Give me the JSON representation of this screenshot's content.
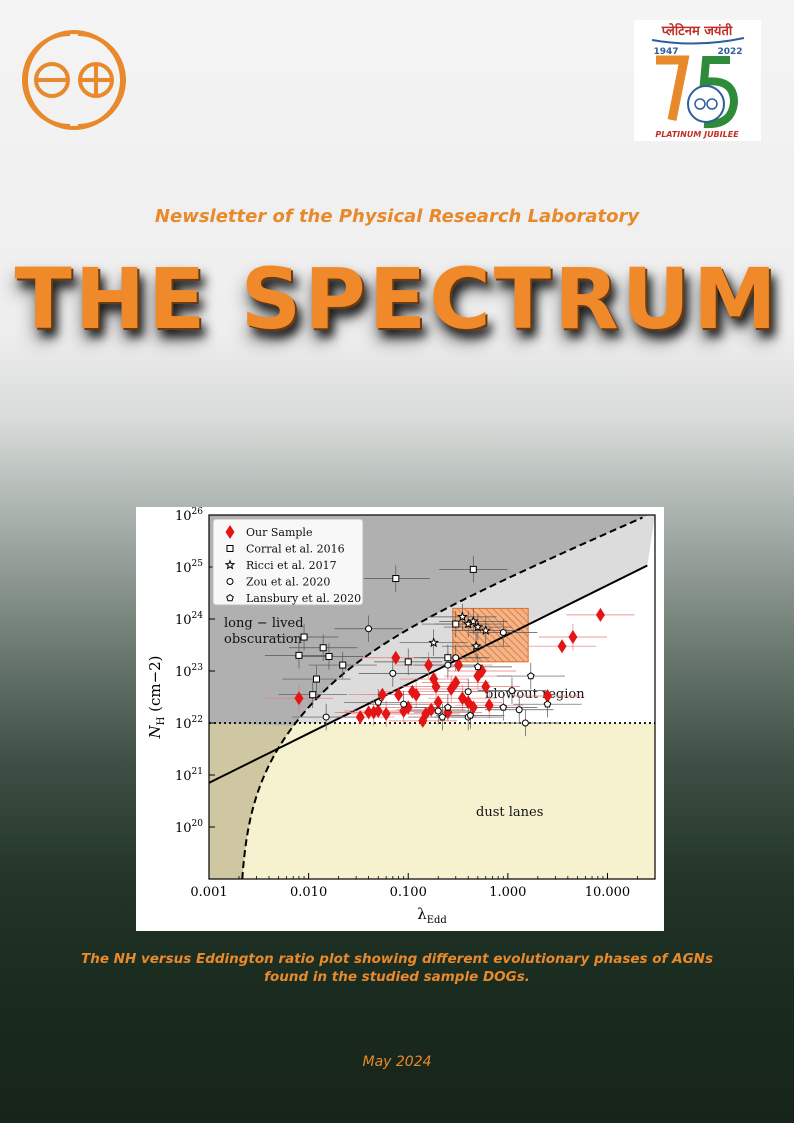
{
  "header": {
    "logo_icon": "prl-logo-icon",
    "jubilee_badge": {
      "hindi_text": "प्लेटिनम जयंती",
      "year_start": "1947",
      "year_end": "2022",
      "number": "75",
      "label": "PLATINUM JUBILEE"
    }
  },
  "subtitle": "Newsletter of the Physical Research Laboratory",
  "title": "THE SPECTRUM",
  "caption_line1": "The NH versus Eddington ratio plot showing different evolutionary phases of AGNs",
  "caption_line2": "found in the studied sample DOGs.",
  "date": "May 2024",
  "colors": {
    "accent": "#e8892b",
    "dark_green": "#192a1f",
    "marker_red": "#e31515"
  },
  "chart_data": {
    "type": "scatter",
    "xlabel": "λEdd",
    "ylabel": "NH (cm−2)",
    "xscale": "log",
    "yscale": "log",
    "xlim": [
      0.001,
      30
    ],
    "ylim": [
      1e+19,
      1e+26
    ],
    "xticks": [
      "0.001",
      "0.010",
      "0.100",
      "1.000",
      "10.000"
    ],
    "yticks": [
      "10^20",
      "10^21",
      "10^22",
      "10^23",
      "10^24",
      "10^25",
      "10^26"
    ],
    "legend_position": "top-left",
    "region_labels": {
      "long_lived_1": "long − lived",
      "long_lived_2": "obscuration",
      "blowout": "blowout region",
      "dust": "dust lanes"
    },
    "series": [
      {
        "name": "Our Sample",
        "marker": "diamond",
        "color": "#e31515",
        "points": [
          [
            0.008,
            3e+22
          ],
          [
            0.033,
            1.3e+22
          ],
          [
            0.04,
            1.6e+22
          ],
          [
            0.045,
            1.6e+22
          ],
          [
            0.05,
            1.7e+22
          ],
          [
            0.055,
            3.5e+22
          ],
          [
            0.06,
            1.5e+22
          ],
          [
            0.075,
            1.8e+23
          ],
          [
            0.08,
            3.5e+22
          ],
          [
            0.09,
            1.7e+22
          ],
          [
            0.1,
            2e+22
          ],
          [
            0.11,
            4e+22
          ],
          [
            0.12,
            3.5e+22
          ],
          [
            0.14,
            1.1e+22
          ],
          [
            0.15,
            1.5e+22
          ],
          [
            0.16,
            1.3e+23
          ],
          [
            0.17,
            1.8e+22
          ],
          [
            0.18,
            7e+22
          ],
          [
            0.19,
            5e+22
          ],
          [
            0.2,
            2.5e+22
          ],
          [
            0.25,
            1.6e+22
          ],
          [
            0.27,
            4.5e+22
          ],
          [
            0.3,
            6e+22
          ],
          [
            0.32,
            1.3e+23
          ],
          [
            0.35,
            3e+22
          ],
          [
            0.4,
            2.5e+22
          ],
          [
            0.45,
            2e+22
          ],
          [
            0.5,
            8e+22
          ],
          [
            0.55,
            1e+23
          ],
          [
            0.6,
            5e+22
          ],
          [
            0.65,
            2.2e+22
          ],
          [
            2.5,
            3.3e+22
          ],
          [
            3.5,
            3e+23
          ],
          [
            4.5,
            4.5e+23
          ],
          [
            8.5,
            1.2e+24
          ]
        ]
      },
      {
        "name": "Corral et al. 2016",
        "marker": "square",
        "points": [
          [
            0.008,
            2e+23
          ],
          [
            0.009,
            4.5e+23
          ],
          [
            0.011,
            3.5e+22
          ],
          [
            0.012,
            7e+22
          ],
          [
            0.014,
            2.8e+23
          ],
          [
            0.016,
            1.9e+23
          ],
          [
            0.022,
            1.3e+23
          ],
          [
            0.075,
            6e+24
          ],
          [
            0.1,
            1.5e+23
          ],
          [
            0.25,
            1.8e+23
          ],
          [
            0.3,
            8e+23
          ],
          [
            0.45,
            9e+24
          ]
        ]
      },
      {
        "name": "Ricci et al. 2017",
        "marker": "star",
        "points": [
          [
            0.18,
            3.5e+23
          ],
          [
            0.35,
            1.1e+24
          ],
          [
            0.4,
            8e+23
          ],
          [
            0.45,
            9e+23
          ],
          [
            0.5,
            7e+23
          ],
          [
            0.6,
            6e+23
          ],
          [
            0.48,
            3e+23
          ]
        ]
      },
      {
        "name": "Zou et al. 2020",
        "marker": "circle",
        "points": [
          [
            0.015,
            1.3e+22
          ],
          [
            0.04,
            6.5e+23
          ],
          [
            0.07,
            9e+22
          ],
          [
            0.09,
            2.3e+22
          ],
          [
            0.2,
            1.7e+22
          ],
          [
            0.25,
            1.3e+23
          ],
          [
            0.3,
            1.8e+23
          ],
          [
            0.4,
            4e+22
          ],
          [
            0.4,
            1.3e+22
          ],
          [
            0.9,
            5.5e+23
          ],
          [
            1.5,
            1e+22
          ],
          [
            1.1,
            4.2e+22
          ],
          [
            1.3,
            1.8e+22
          ]
        ]
      },
      {
        "name": "Lansbury et al. 2020",
        "marker": "pentagon",
        "points": [
          [
            0.05,
            2.5e+22
          ],
          [
            0.22,
            1.3e+22
          ],
          [
            0.25,
            2e+22
          ],
          [
            0.42,
            1.4e+22
          ],
          [
            0.5,
            1.2e+23
          ],
          [
            0.9,
            2e+22
          ],
          [
            1.7,
            8e+22
          ],
          [
            2.5,
            2.3e+22
          ]
        ]
      }
    ]
  }
}
